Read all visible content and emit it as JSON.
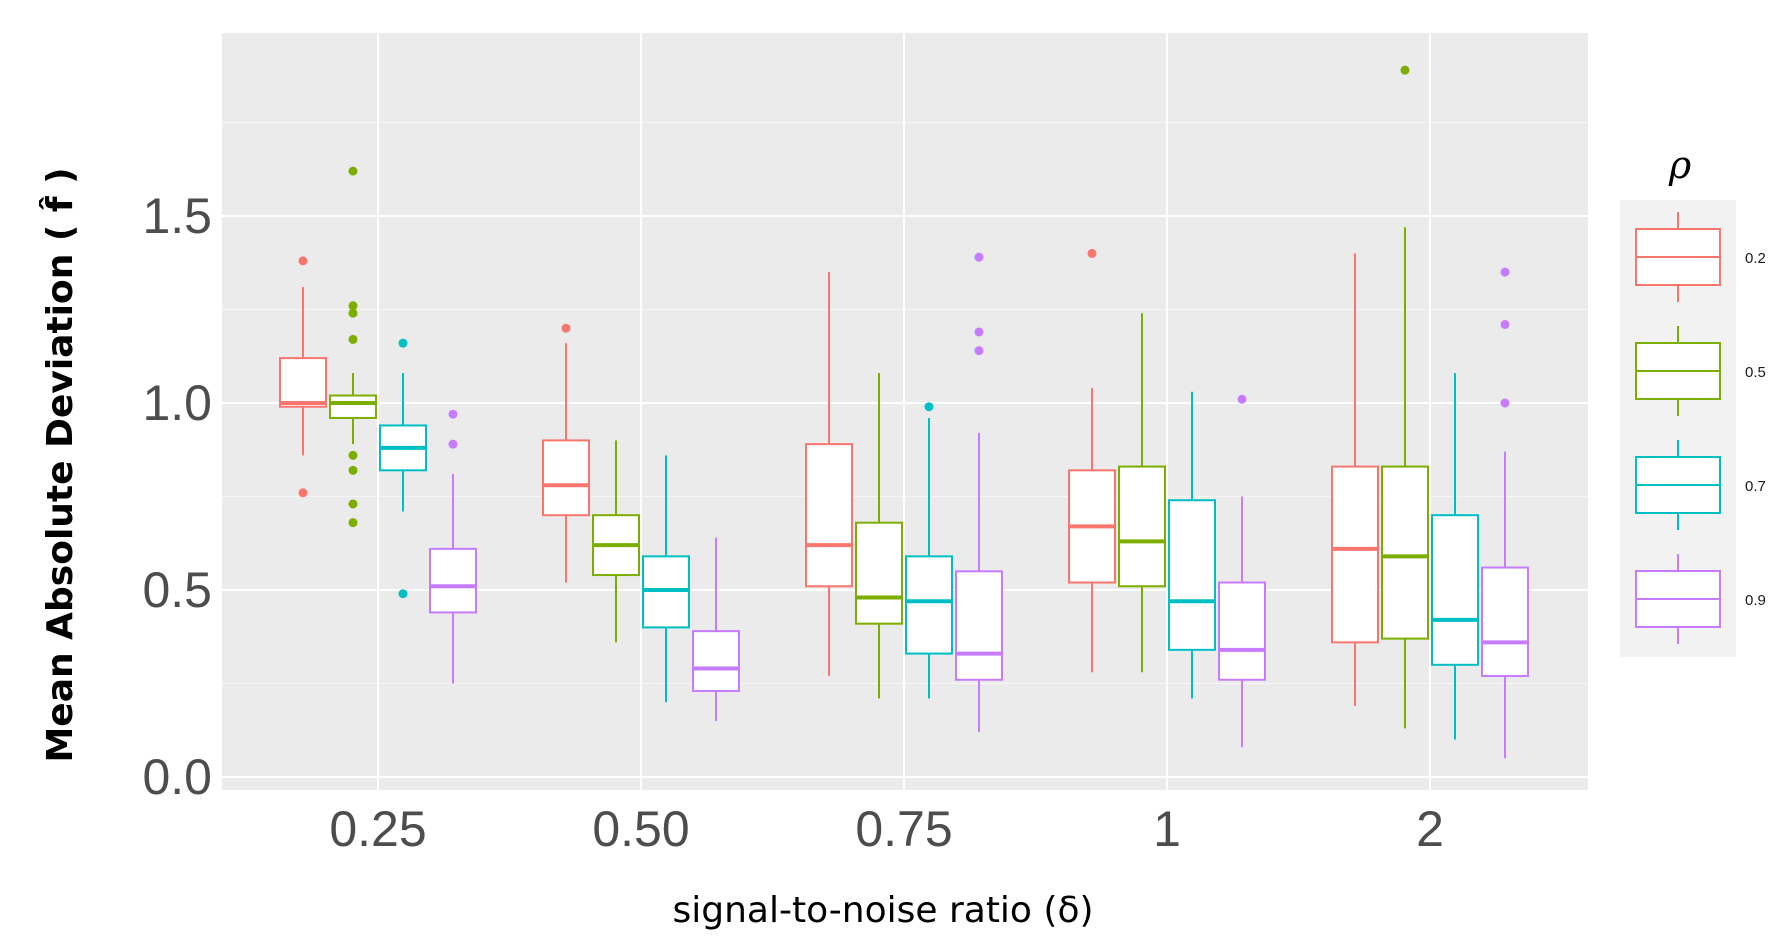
{
  "chart_data": {
    "type": "boxplot",
    "title": "",
    "xlabel": "signal-to-noise ratio (δ)",
    "ylabel": "Mean Absolute Deviation ( f̂ )",
    "categories": [
      "0.25",
      "0.50",
      "0.75",
      "1",
      "2"
    ],
    "y_ticks": [
      "0.0",
      "0.5",
      "1.0",
      "1.5"
    ],
    "ylim": [
      -0.03,
      2.0
    ],
    "grid": true,
    "legend": {
      "title": "ρ",
      "position": "right",
      "entries": [
        "0.2",
        "0.5",
        "0.7",
        "0.9"
      ]
    },
    "colors": {
      "0.2": "#F8766D",
      "0.5": "#7CAE00",
      "0.7": "#00BFC4",
      "0.9": "#C77CFF"
    },
    "series": [
      {
        "name": "0.2",
        "boxes": [
          {
            "category": "0.25",
            "lower_whisker": 0.86,
            "q1": 0.99,
            "median": 1.0,
            "q3": 1.12,
            "upper_whisker": 1.31,
            "outliers": [
              1.38,
              0.76
            ]
          },
          {
            "category": "0.50",
            "lower_whisker": 0.52,
            "q1": 0.7,
            "median": 0.78,
            "q3": 0.9,
            "upper_whisker": 1.16,
            "outliers": [
              1.2
            ]
          },
          {
            "category": "0.75",
            "lower_whisker": 0.27,
            "q1": 0.51,
            "median": 0.62,
            "q3": 0.89,
            "upper_whisker": 1.35,
            "outliers": []
          },
          {
            "category": "1",
            "lower_whisker": 0.28,
            "q1": 0.52,
            "median": 0.67,
            "q3": 0.82,
            "upper_whisker": 1.04,
            "outliers": [
              1.4
            ]
          },
          {
            "category": "2",
            "lower_whisker": 0.19,
            "q1": 0.36,
            "median": 0.61,
            "q3": 0.83,
            "upper_whisker": 1.4,
            "outliers": []
          }
        ]
      },
      {
        "name": "0.5",
        "boxes": [
          {
            "category": "0.25",
            "lower_whisker": 0.89,
            "q1": 0.96,
            "median": 1.0,
            "q3": 1.02,
            "upper_whisker": 1.08,
            "outliers": [
              1.62,
              1.26,
              1.24,
              1.17,
              0.86,
              0.82,
              0.73,
              0.68
            ]
          },
          {
            "category": "0.50",
            "lower_whisker": 0.36,
            "q1": 0.54,
            "median": 0.62,
            "q3": 0.7,
            "upper_whisker": 0.9,
            "outliers": []
          },
          {
            "category": "0.75",
            "lower_whisker": 0.21,
            "q1": 0.41,
            "median": 0.48,
            "q3": 0.68,
            "upper_whisker": 1.08,
            "outliers": []
          },
          {
            "category": "1",
            "lower_whisker": 0.28,
            "q1": 0.51,
            "median": 0.63,
            "q3": 0.83,
            "upper_whisker": 1.24,
            "outliers": []
          },
          {
            "category": "2",
            "lower_whisker": 0.13,
            "q1": 0.37,
            "median": 0.59,
            "q3": 0.83,
            "upper_whisker": 1.47,
            "outliers": [
              1.89
            ]
          }
        ]
      },
      {
        "name": "0.7",
        "boxes": [
          {
            "category": "0.25",
            "lower_whisker": 0.71,
            "q1": 0.82,
            "median": 0.88,
            "q3": 0.94,
            "upper_whisker": 1.08,
            "outliers": [
              1.16,
              0.49
            ]
          },
          {
            "category": "0.50",
            "lower_whisker": 0.2,
            "q1": 0.4,
            "median": 0.5,
            "q3": 0.59,
            "upper_whisker": 0.86,
            "outliers": []
          },
          {
            "category": "0.75",
            "lower_whisker": 0.21,
            "q1": 0.33,
            "median": 0.47,
            "q3": 0.59,
            "upper_whisker": 0.96,
            "outliers": [
              0.99
            ]
          },
          {
            "category": "1",
            "lower_whisker": 0.21,
            "q1": 0.34,
            "median": 0.47,
            "q3": 0.74,
            "upper_whisker": 1.03,
            "outliers": []
          },
          {
            "category": "2",
            "lower_whisker": 0.1,
            "q1": 0.3,
            "median": 0.42,
            "q3": 0.7,
            "upper_whisker": 1.08,
            "outliers": []
          }
        ]
      },
      {
        "name": "0.9",
        "boxes": [
          {
            "category": "0.25",
            "lower_whisker": 0.25,
            "q1": 0.44,
            "median": 0.51,
            "q3": 0.61,
            "upper_whisker": 0.81,
            "outliers": [
              0.97,
              0.89
            ]
          },
          {
            "category": "0.50",
            "lower_whisker": 0.15,
            "q1": 0.23,
            "median": 0.29,
            "q3": 0.39,
            "upper_whisker": 0.64,
            "outliers": []
          },
          {
            "category": "0.75",
            "lower_whisker": 0.12,
            "q1": 0.26,
            "median": 0.33,
            "q3": 0.55,
            "upper_whisker": 0.92,
            "outliers": [
              1.39,
              1.19,
              1.14
            ]
          },
          {
            "category": "1",
            "lower_whisker": 0.08,
            "q1": 0.26,
            "median": 0.34,
            "q3": 0.52,
            "upper_whisker": 0.75,
            "outliers": [
              1.01
            ]
          },
          {
            "category": "2",
            "lower_whisker": 0.05,
            "q1": 0.27,
            "median": 0.36,
            "q3": 0.56,
            "upper_whisker": 0.87,
            "outliers": [
              1.35,
              1.21,
              1.0
            ]
          }
        ]
      }
    ]
  }
}
